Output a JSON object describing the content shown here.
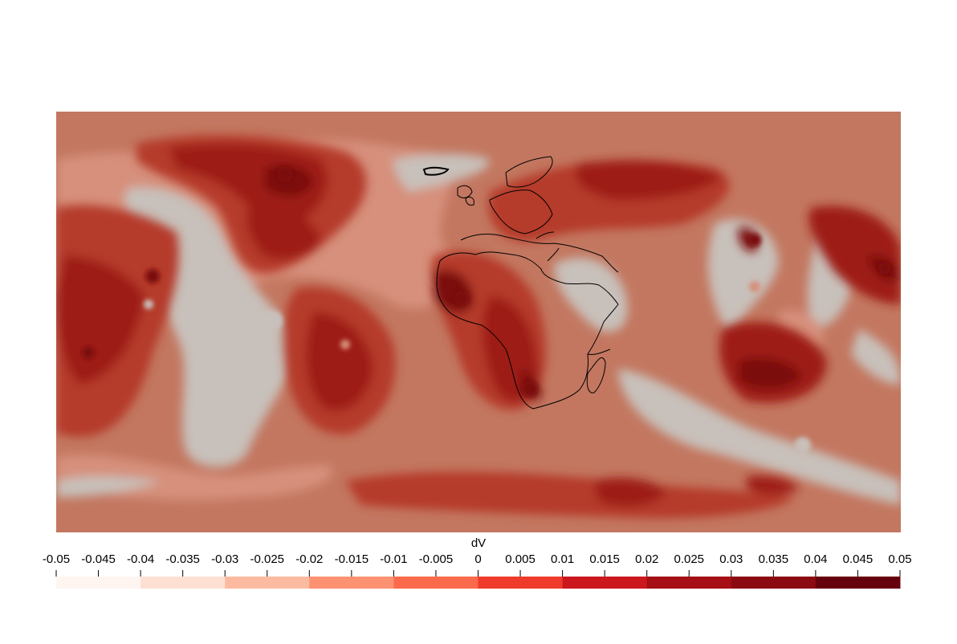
{
  "colorbar": {
    "title": "dV",
    "min": -0.05,
    "max": 0.05,
    "tick_labels": [
      "-0.05",
      "-0.045",
      "-0.04",
      "-0.035",
      "-0.03",
      "-0.025",
      "-0.02",
      "-0.015",
      "-0.01",
      "-0.005",
      "0",
      "0.005",
      "0.01",
      "0.015",
      "0.02",
      "0.025",
      "0.03",
      "0.035",
      "0.04",
      "0.045",
      "0.05"
    ],
    "bins": [
      {
        "from": -0.05,
        "to": -0.04,
        "color": "#fff5f0"
      },
      {
        "from": -0.04,
        "to": -0.03,
        "color": "#fee0d2"
      },
      {
        "from": -0.03,
        "to": -0.02,
        "color": "#fcbba1"
      },
      {
        "from": -0.02,
        "to": -0.01,
        "color": "#fc9272"
      },
      {
        "from": -0.01,
        "to": 0.0,
        "color": "#fb6a4a"
      },
      {
        "from": 0.0,
        "to": 0.01,
        "color": "#ef3b2c"
      },
      {
        "from": 0.01,
        "to": 0.02,
        "color": "#cb181d"
      },
      {
        "from": 0.02,
        "to": 0.03,
        "color": "#a50f15"
      },
      {
        "from": 0.03,
        "to": 0.04,
        "color": "#8b0a12"
      },
      {
        "from": 0.04,
        "to": 0.05,
        "color": "#67000d"
      }
    ]
  },
  "map": {
    "colors": {
      "background": "#c37760",
      "level1": "#d6907b",
      "level2": "#c8c0ba",
      "level3": "#b53a2c",
      "level4": "#9e1a15",
      "level5": "#7c0a0d",
      "coastline": "#000000"
    }
  }
}
